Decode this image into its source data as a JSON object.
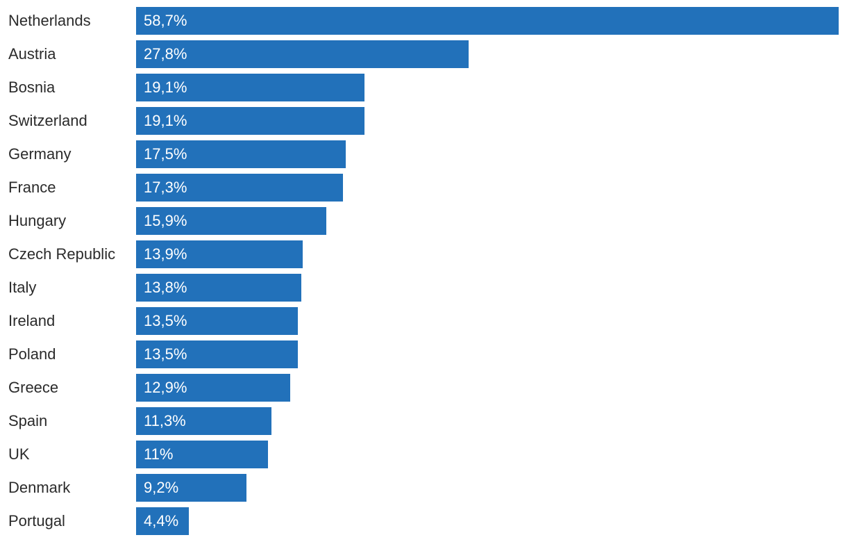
{
  "chart_data": {
    "type": "bar",
    "orientation": "horizontal",
    "title": "",
    "xlabel": "",
    "ylabel": "",
    "grid": false,
    "legend": "none",
    "xlim": [
      0,
      58.7
    ],
    "categories": [
      "Netherlands",
      "Austria",
      "Bosnia",
      "Switzerland",
      "Germany",
      "France",
      "Hungary",
      "Czech Republic",
      "Italy",
      "Ireland",
      "Poland",
      "Greece",
      "Spain",
      "UK",
      "Denmark",
      "Portugal"
    ],
    "values": [
      58.7,
      27.8,
      19.1,
      19.1,
      17.5,
      17.3,
      15.9,
      13.9,
      13.8,
      13.5,
      13.5,
      12.9,
      11.3,
      11,
      9.2,
      4.4
    ],
    "data_labels": [
      "58,7%",
      "27,8%",
      "19,1%",
      "19,1%",
      "17,5%",
      "17,3%",
      "15,9%",
      "13,9%",
      "13,8%",
      "13,5%",
      "13,5%",
      "12,9%",
      "11,3%",
      "11%",
      "9,2%",
      "4,4%"
    ],
    "bar_color": "#2271ba",
    "label_color": "#2b2b2b",
    "data_label_color": "#ffffff"
  }
}
